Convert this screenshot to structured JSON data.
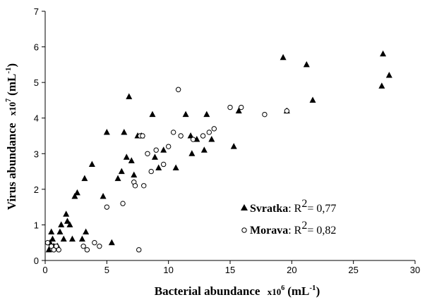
{
  "chart_data": {
    "type": "scatter",
    "xlabel": "Bacterial abundance",
    "xlabel_unit_prefix": "x10",
    "xlabel_unit_exp": "6",
    "xlabel_unit_suffix": "(mL",
    "xlabel_unit_suffix_exp": "-1",
    "xlabel_unit_close": ")",
    "ylabel": "Virus abundance",
    "ylabel_unit_prefix": "x10",
    "ylabel_unit_exp": "7",
    "ylabel_unit_suffix": "(mL",
    "ylabel_unit_suffix_exp": "-1",
    "ylabel_unit_close": ")",
    "xlim": [
      0,
      30
    ],
    "ylim": [
      0,
      7
    ],
    "x_ticks": [
      "0",
      "5",
      "10",
      "15",
      "20",
      "25",
      "30"
    ],
    "y_ticks": [
      "0",
      "1",
      "2",
      "3",
      "4",
      "5",
      "6",
      "7"
    ],
    "grid": false,
    "legend_position": "bottom-right",
    "series": [
      {
        "name": "Svratka",
        "marker": "triangle",
        "color": "#000000",
        "r2_label": ": R",
        "r2_exp": "2",
        "r2_value": "= 0,77",
        "points": [
          [
            0.3,
            0.3
          ],
          [
            0.4,
            0.5
          ],
          [
            0.5,
            0.8
          ],
          [
            0.6,
            0.6
          ],
          [
            0.7,
            0.4
          ],
          [
            1.0,
            0.4
          ],
          [
            1.2,
            0.8
          ],
          [
            1.3,
            1.0
          ],
          [
            1.5,
            0.6
          ],
          [
            1.7,
            1.3
          ],
          [
            1.8,
            1.1
          ],
          [
            2.0,
            1.0
          ],
          [
            2.2,
            0.6
          ],
          [
            2.4,
            1.8
          ],
          [
            2.6,
            1.9
          ],
          [
            3.0,
            0.6
          ],
          [
            3.2,
            2.3
          ],
          [
            3.3,
            0.8
          ],
          [
            3.8,
            2.7
          ],
          [
            4.7,
            1.8
          ],
          [
            5.0,
            3.6
          ],
          [
            5.4,
            0.5
          ],
          [
            5.9,
            2.3
          ],
          [
            6.2,
            2.5
          ],
          [
            6.4,
            3.6
          ],
          [
            6.6,
            2.9
          ],
          [
            6.8,
            4.6
          ],
          [
            7.0,
            2.8
          ],
          [
            7.2,
            2.4
          ],
          [
            7.5,
            3.5
          ],
          [
            7.8,
            3.5
          ],
          [
            8.7,
            4.1
          ],
          [
            8.9,
            2.9
          ],
          [
            9.2,
            2.6
          ],
          [
            9.6,
            3.1
          ],
          [
            10.6,
            2.6
          ],
          [
            11.4,
            4.1
          ],
          [
            11.8,
            3.5
          ],
          [
            11.9,
            3.0
          ],
          [
            12.3,
            3.4
          ],
          [
            12.9,
            3.1
          ],
          [
            13.1,
            4.1
          ],
          [
            13.5,
            3.4
          ],
          [
            15.3,
            3.2
          ],
          [
            15.7,
            4.2
          ],
          [
            19.3,
            5.7
          ],
          [
            19.6,
            4.2
          ],
          [
            21.2,
            5.5
          ],
          [
            21.7,
            4.5
          ],
          [
            27.3,
            4.9
          ],
          [
            27.4,
            5.8
          ],
          [
            27.9,
            5.2
          ]
        ]
      },
      {
        "name": "Morava",
        "marker": "circle",
        "color": "#000000",
        "r2_label": ": R",
        "r2_exp": "2",
        "r2_value": "= 0,82",
        "points": [
          [
            0.2,
            0.5
          ],
          [
            0.5,
            0.4
          ],
          [
            0.7,
            0.3
          ],
          [
            0.9,
            0.4
          ],
          [
            1.1,
            0.3
          ],
          [
            3.1,
            0.4
          ],
          [
            3.4,
            0.3
          ],
          [
            4.0,
            0.5
          ],
          [
            4.4,
            0.4
          ],
          [
            5.0,
            1.5
          ],
          [
            6.3,
            1.6
          ],
          [
            7.2,
            2.2
          ],
          [
            7.3,
            2.1
          ],
          [
            7.6,
            0.3
          ],
          [
            7.7,
            3.5
          ],
          [
            7.9,
            3.5
          ],
          [
            8.0,
            2.1
          ],
          [
            8.3,
            3.0
          ],
          [
            8.6,
            2.5
          ],
          [
            9.0,
            3.1
          ],
          [
            9.6,
            2.7
          ],
          [
            10.0,
            3.2
          ],
          [
            10.4,
            3.6
          ],
          [
            10.8,
            4.8
          ],
          [
            11.0,
            3.5
          ],
          [
            12.0,
            3.4
          ],
          [
            12.8,
            3.5
          ],
          [
            13.3,
            3.6
          ],
          [
            13.7,
            3.7
          ],
          [
            15.0,
            4.3
          ],
          [
            15.9,
            4.3
          ],
          [
            17.8,
            4.1
          ],
          [
            19.6,
            4.2
          ]
        ]
      }
    ]
  }
}
